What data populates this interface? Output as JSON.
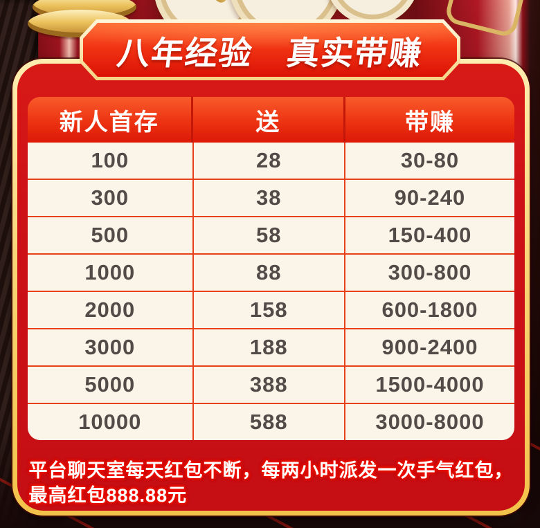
{
  "banner": {
    "title": "八年经验　真实带赚"
  },
  "table": {
    "columns": [
      "新人首存",
      "送",
      "带赚"
    ],
    "rows": [
      [
        "100",
        "28",
        "30-80"
      ],
      [
        "300",
        "38",
        "90-240"
      ],
      [
        "500",
        "58",
        "150-400"
      ],
      [
        "1000",
        "88",
        "300-800"
      ],
      [
        "2000",
        "158",
        "600-1800"
      ],
      [
        "3000",
        "188",
        "900-2400"
      ],
      [
        "5000",
        "388",
        "1500-4000"
      ],
      [
        "10000",
        "588",
        "3000-8000"
      ]
    ]
  },
  "footer": {
    "note": "平台聊天室每天红包不断，每两小时派发一次手气红包，最高红包888.88元"
  },
  "decor": {
    "top_left": "gold-coin-stack-icon",
    "top_center": "gold-coins-icon",
    "top_right": "gold-ingot-outline-icon"
  },
  "colors": {
    "panel_red": "#cd1117",
    "gold_border": "#f9d577",
    "header_gradient_top": "#f95b2b",
    "header_gradient_bottom": "#dc1807",
    "table_bg": "#fbf4e9",
    "table_border": "#e7401a",
    "cell_text": "#524c49",
    "note_glow": "#f21000",
    "text_white": "#ffffff"
  }
}
